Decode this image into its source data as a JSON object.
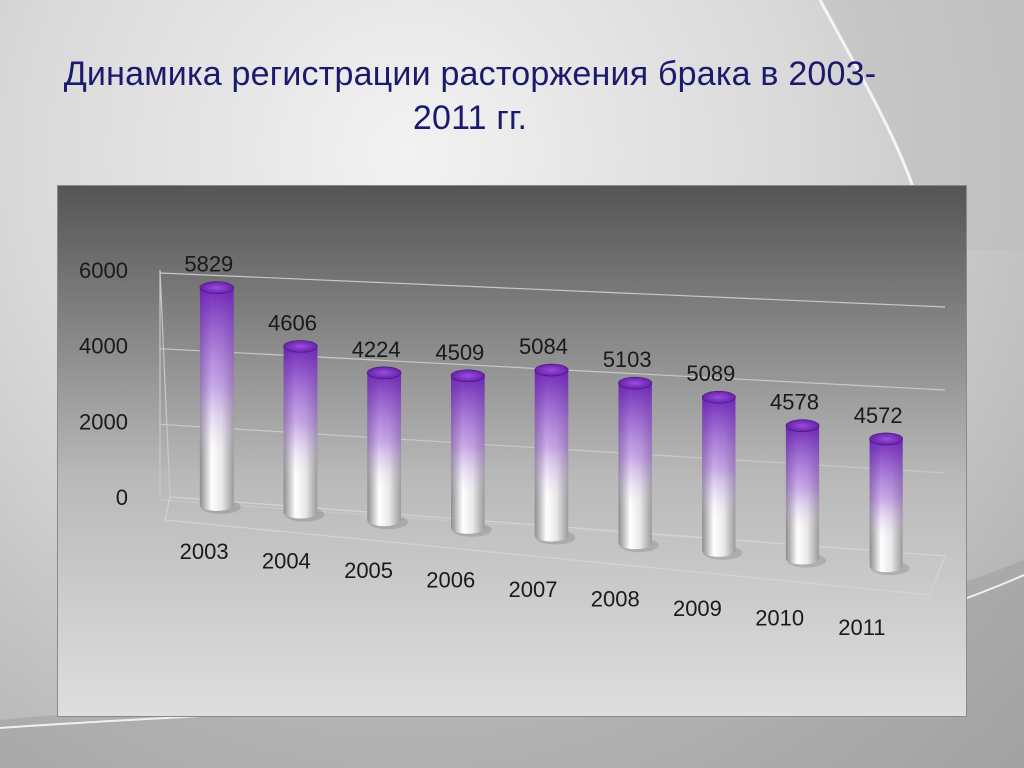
{
  "title": {
    "line1": "Динамика регистрации расторжения брака в 2003-",
    "line2": "2011 гг."
  },
  "chart_data": {
    "type": "bar",
    "categories": [
      "2003",
      "2004",
      "2005",
      "2006",
      "2007",
      "2008",
      "2009",
      "2010",
      "2011"
    ],
    "values": [
      5829,
      4606,
      4224,
      4509,
      5084,
      5103,
      5089,
      4578,
      4572
    ],
    "y_ticks": [
      "0",
      "2000",
      "4000",
      "6000"
    ],
    "ylim": [
      0,
      6000
    ],
    "grid": true,
    "colors": {
      "bar_top": "#7a2fc0",
      "bar_base": "#e6e6e6",
      "label": "#1a1a1a"
    }
  }
}
